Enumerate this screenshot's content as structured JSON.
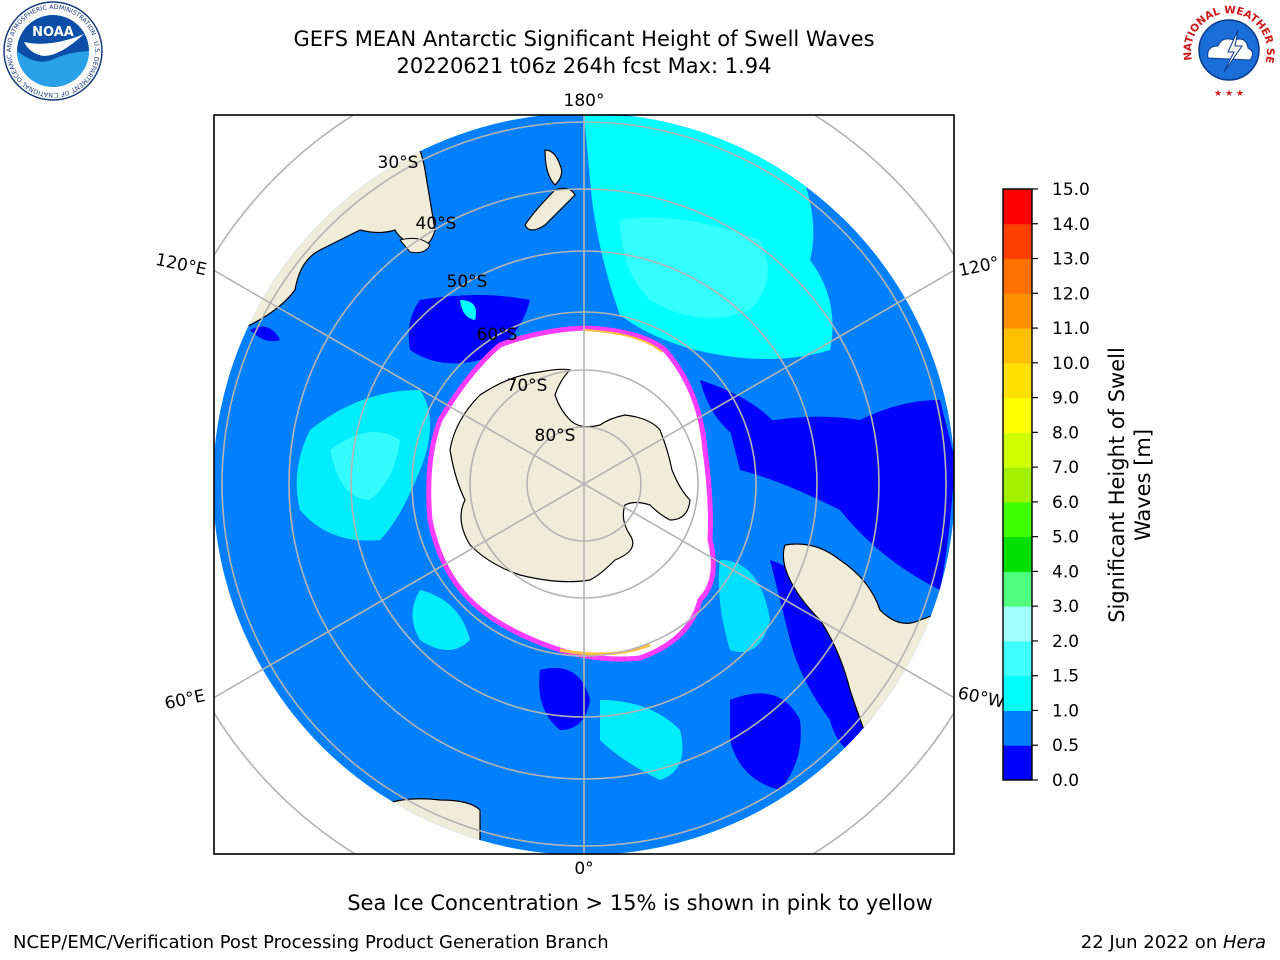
{
  "header": {
    "title_line1": "GEFS MEAN Antarctic Significant Height of Swell Waves",
    "title_line2": "20220621 t06z 264h fcst   Max: 1.94"
  },
  "logos": {
    "noaa": {
      "text": "NOAA",
      "ring_text": "NATIONAL OCEANIC AND ATMOSPHERIC ADMINISTRATION · U.S. DEPARTMENT OF COMMERCE ·"
    },
    "nws": {
      "ring_text": "NATIONAL WEATHER SERVICE"
    }
  },
  "map": {
    "longitude_labels": [
      "180°",
      "0°",
      "120°E",
      "120°",
      "60°E",
      "60°W"
    ],
    "latitude_labels": [
      "30°S",
      "40°S",
      "50°S",
      "60°S",
      "70°S",
      "80°S"
    ],
    "colors": {
      "ocean_base": "#0080ff",
      "ocean_low": "#0000ff",
      "ocean_mid": "#00ffff",
      "ocean_light": "#40ffff",
      "land": "#efedd9",
      "ice": "#ffffff",
      "ice_edge": "#ff3cff",
      "ice_edge_yellow": "#ffc040",
      "grid": "#b4b4b4"
    }
  },
  "colorbar": {
    "label_line1": "Significant Height of Swell",
    "label_line2": "Waves [m]",
    "ticks": [
      "0.0",
      "0.5",
      "1.0",
      "1.5",
      "2.0",
      "3.0",
      "4.0",
      "5.0",
      "6.0",
      "7.0",
      "8.0",
      "9.0",
      "10.0",
      "11.0",
      "12.0",
      "13.0",
      "14.0",
      "15.0"
    ],
    "colors": [
      "#0000ff",
      "#0080ff",
      "#00ffff",
      "#40ffff",
      "#a0ffff",
      "#50ff80",
      "#00e000",
      "#40ff00",
      "#a0f000",
      "#d0ff00",
      "#ffff00",
      "#ffe000",
      "#ffc000",
      "#ff9000",
      "#ff7000",
      "#ff4000",
      "#ff0000"
    ]
  },
  "note": "Sea Ice Concentration > 15% is shown in pink to yellow",
  "footer": {
    "left": "NCEP/EMC/Verification Post Processing Product Generation Branch",
    "right_prefix": "22 Jun 2022 on ",
    "right_machine": "Hera"
  }
}
